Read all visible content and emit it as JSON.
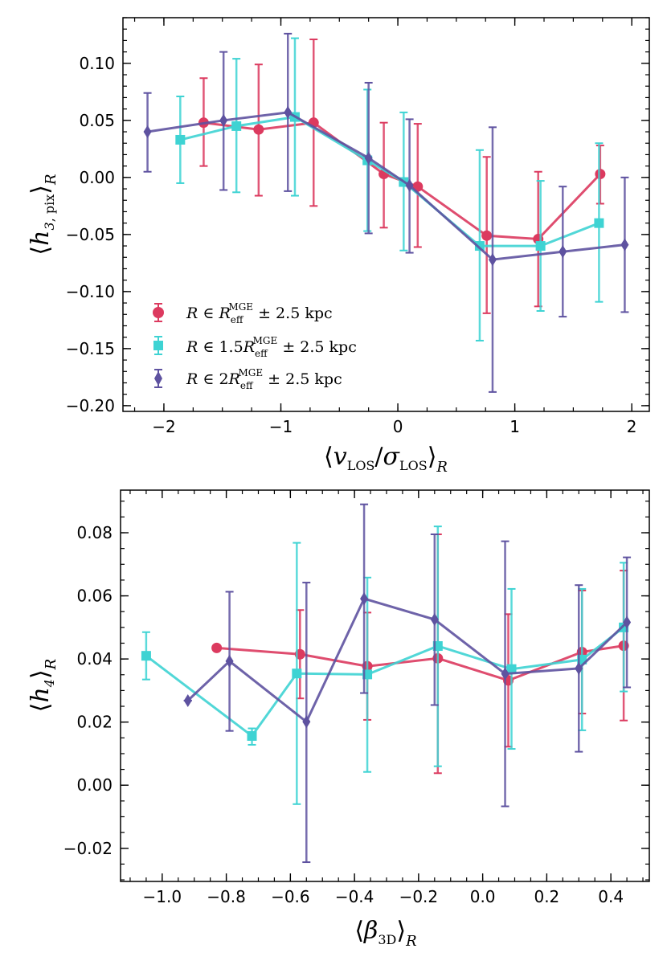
{
  "colors": {
    "red": "#DC3A5F",
    "cyan": "#3ED3D3",
    "purple": "#5E52A0"
  },
  "legend": {
    "items": [
      {
        "series": "red",
        "marker": "circle",
        "label": "R ∈ R_eff^MGE ± 2.5 kpc"
      },
      {
        "series": "cyan",
        "marker": "square",
        "label": "R ∈ 1.5R_eff^MGE ± 2.5 kpc"
      },
      {
        "series": "purple",
        "marker": "diamond",
        "label": "R ∈ 2R_eff^MGE ± 2.5 kpc"
      }
    ]
  },
  "chart_data": [
    {
      "type": "line",
      "xlabel": "⟨v_LOS/σ_LOS⟩_R",
      "ylabel": "⟨h_3,pix⟩_R",
      "xlim": [
        -2.35,
        2.15
      ],
      "ylim": [
        -0.205,
        0.14
      ],
      "xticks": [
        -2,
        -1,
        0,
        1,
        2
      ],
      "xtick_labels": [
        "−2",
        "−1",
        "0",
        "1",
        "2"
      ],
      "yticks": [
        0.1,
        0.05,
        0.0,
        -0.05,
        -0.1,
        -0.15,
        -0.2
      ],
      "ytick_labels": [
        "0.10",
        "0.05",
        "0.00",
        "−0.05",
        "−0.10",
        "−0.15",
        "−0.20"
      ],
      "series": [
        {
          "name": "red",
          "marker": "circle",
          "points": [
            {
              "x": -1.66,
              "y": 0.048,
              "lo": 0.01,
              "hi": 0.087
            },
            {
              "x": -1.19,
              "y": 0.042,
              "lo": -0.016,
              "hi": 0.099
            },
            {
              "x": -0.72,
              "y": 0.048,
              "lo": -0.025,
              "hi": 0.121
            },
            {
              "x": -0.12,
              "y": 0.003,
              "lo": -0.044,
              "hi": 0.048
            },
            {
              "x": 0.17,
              "y": -0.008,
              "lo": -0.061,
              "hi": 0.047
            },
            {
              "x": 0.76,
              "y": -0.051,
              "lo": -0.119,
              "hi": 0.018
            },
            {
              "x": 1.2,
              "y": -0.054,
              "lo": -0.113,
              "hi": 0.005
            },
            {
              "x": 1.73,
              "y": 0.003,
              "lo": -0.023,
              "hi": 0.028
            }
          ]
        },
        {
          "name": "cyan",
          "marker": "square",
          "points": [
            {
              "x": -1.86,
              "y": 0.033,
              "lo": -0.005,
              "hi": 0.071
            },
            {
              "x": -1.38,
              "y": 0.045,
              "lo": -0.013,
              "hi": 0.104
            },
            {
              "x": -0.88,
              "y": 0.053,
              "lo": -0.016,
              "hi": 0.122
            },
            {
              "x": -0.26,
              "y": 0.015,
              "lo": -0.047,
              "hi": 0.077
            },
            {
              "x": 0.05,
              "y": -0.004,
              "lo": -0.064,
              "hi": 0.057
            },
            {
              "x": 0.7,
              "y": -0.06,
              "lo": -0.143,
              "hi": 0.024
            },
            {
              "x": 1.22,
              "y": -0.06,
              "lo": -0.117,
              "hi": -0.003
            },
            {
              "x": 1.72,
              "y": -0.04,
              "lo": -0.109,
              "hi": 0.03
            }
          ]
        },
        {
          "name": "purple",
          "marker": "diamond",
          "points": [
            {
              "x": -2.14,
              "y": 0.04,
              "lo": 0.005,
              "hi": 0.074
            },
            {
              "x": -1.49,
              "y": 0.05,
              "lo": -0.011,
              "hi": 0.11
            },
            {
              "x": -0.94,
              "y": 0.057,
              "lo": -0.012,
              "hi": 0.126
            },
            {
              "x": -0.25,
              "y": 0.017,
              "lo": -0.049,
              "hi": 0.083
            },
            {
              "x": 0.1,
              "y": -0.007,
              "lo": -0.066,
              "hi": 0.051
            },
            {
              "x": 0.81,
              "y": -0.072,
              "lo": -0.188,
              "hi": 0.044
            },
            {
              "x": 1.41,
              "y": -0.065,
              "lo": -0.122,
              "hi": -0.008
            },
            {
              "x": 1.94,
              "y": -0.059,
              "lo": -0.118,
              "hi": 0.0
            }
          ]
        }
      ]
    },
    {
      "type": "line",
      "xlabel": "⟨β_3D⟩_R",
      "ylabel": "⟨h_4⟩_R",
      "xlim": [
        -1.13,
        0.52
      ],
      "ylim": [
        -0.0305,
        0.0935
      ],
      "xticks": [
        -1.0,
        -0.8,
        -0.6,
        -0.4,
        -0.2,
        0.0,
        0.2,
        0.4
      ],
      "xtick_labels": [
        "−1.0",
        "−0.8",
        "−0.6",
        "−0.4",
        "−0.2",
        "0.0",
        "0.2",
        "0.4"
      ],
      "yticks": [
        0.08,
        0.06,
        0.04,
        0.02,
        0.0,
        -0.02
      ],
      "ytick_labels": [
        "0.08",
        "0.06",
        "0.04",
        "0.02",
        "0.00",
        "−0.02"
      ],
      "series": [
        {
          "name": "red",
          "marker": "circle",
          "points": [
            {
              "x": -0.83,
              "y": 0.0435,
              "lo": 0.0435,
              "hi": 0.0435
            },
            {
              "x": -0.57,
              "y": 0.0415,
              "lo": 0.0275,
              "hi": 0.0555
            },
            {
              "x": -0.36,
              "y": 0.0377,
              "lo": 0.0207,
              "hi": 0.0547
            },
            {
              "x": -0.14,
              "y": 0.0402,
              "lo": 0.0038,
              "hi": 0.0795
            },
            {
              "x": 0.08,
              "y": 0.0332,
              "lo": 0.0122,
              "hi": 0.0542
            },
            {
              "x": 0.31,
              "y": 0.0422,
              "lo": 0.0227,
              "hi": 0.0617
            },
            {
              "x": 0.44,
              "y": 0.0442,
              "lo": 0.0205,
              "hi": 0.068
            }
          ]
        },
        {
          "name": "cyan",
          "marker": "square",
          "points": [
            {
              "x": -1.05,
              "y": 0.041,
              "lo": 0.0335,
              "hi": 0.0485
            },
            {
              "x": -0.72,
              "y": 0.0156,
              "lo": 0.0128,
              "hi": 0.018
            },
            {
              "x": -0.58,
              "y": 0.0354,
              "lo": -0.006,
              "hi": 0.0768
            },
            {
              "x": -0.36,
              "y": 0.0351,
              "lo": 0.0042,
              "hi": 0.0658
            },
            {
              "x": -0.14,
              "y": 0.0441,
              "lo": 0.006,
              "hi": 0.082
            },
            {
              "x": 0.09,
              "y": 0.0368,
              "lo": 0.0115,
              "hi": 0.0622
            },
            {
              "x": 0.31,
              "y": 0.0398,
              "lo": 0.0174,
              "hi": 0.0622
            },
            {
              "x": 0.44,
              "y": 0.05,
              "lo": 0.0297,
              "hi": 0.0705
            }
          ]
        },
        {
          "name": "purple",
          "marker": "diamond",
          "points": [
            {
              "x": -0.92,
              "y": 0.0268,
              "lo": 0.0268,
              "hi": 0.0268
            },
            {
              "x": -0.79,
              "y": 0.0393,
              "lo": 0.0172,
              "hi": 0.0613
            },
            {
              "x": -0.55,
              "y": 0.0201,
              "lo": -0.0244,
              "hi": 0.0642
            },
            {
              "x": -0.37,
              "y": 0.0591,
              "lo": 0.0292,
              "hi": 0.089
            },
            {
              "x": -0.15,
              "y": 0.0525,
              "lo": 0.0254,
              "hi": 0.0795
            },
            {
              "x": 0.07,
              "y": 0.0353,
              "lo": -0.0067,
              "hi": 0.0773
            },
            {
              "x": 0.3,
              "y": 0.037,
              "lo": 0.0106,
              "hi": 0.0634
            },
            {
              "x": 0.45,
              "y": 0.0516,
              "lo": 0.031,
              "hi": 0.0722
            }
          ]
        }
      ]
    }
  ]
}
